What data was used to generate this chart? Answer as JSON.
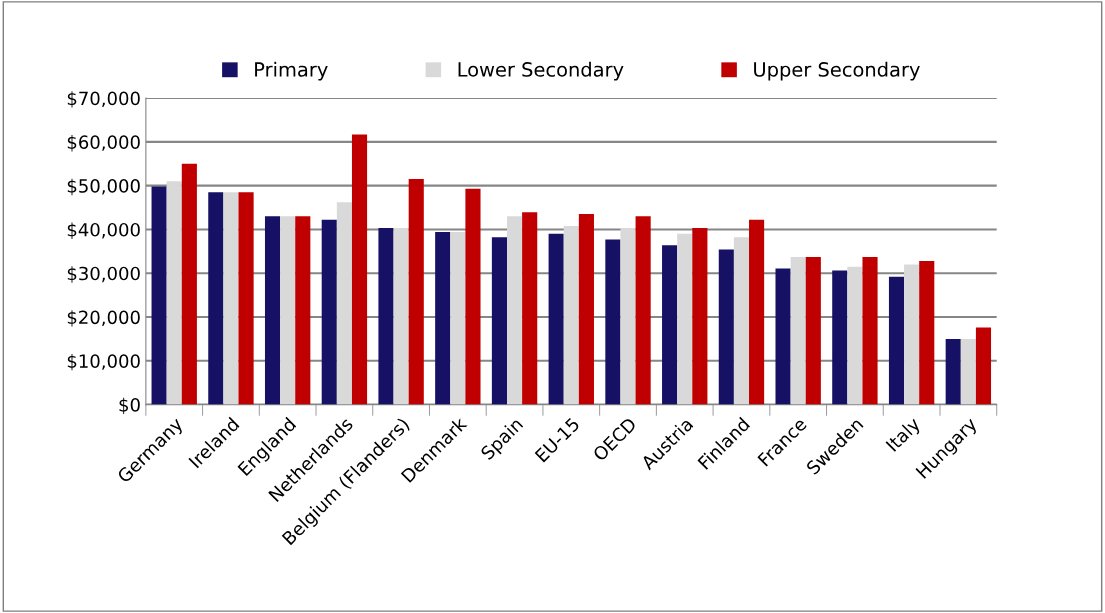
{
  "chart_data": {
    "type": "bar",
    "categories": [
      "Germany",
      "Ireland",
      "England",
      "Netherlands",
      "Belgium (Flanders)",
      "Denmark",
      "Spain",
      "EU-15",
      "OECD",
      "Austria",
      "Finland",
      "France",
      "Sweden",
      "Italy",
      "Hungary"
    ],
    "series": [
      {
        "name": "Primary",
        "color": "#161164",
        "values": [
          49800,
          48500,
          43000,
          42200,
          40300,
          39400,
          38200,
          39000,
          37700,
          36400,
          35400,
          31100,
          30600,
          29200,
          15000
        ]
      },
      {
        "name": "Lower Secondary",
        "color": "#d9d9d9",
        "values": [
          51000,
          48500,
          43000,
          46200,
          40300,
          39400,
          43000,
          40800,
          40300,
          39000,
          38200,
          33700,
          31500,
          32000,
          15000
        ]
      },
      {
        "name": "Upper Secondary",
        "color": "#c00000",
        "values": [
          55000,
          48500,
          43000,
          61700,
          51500,
          49300,
          43900,
          43500,
          43000,
          40300,
          42200,
          33700,
          33700,
          32800,
          17600
        ]
      }
    ],
    "ylim": [
      0,
      70000
    ],
    "yticks": [
      {
        "value": 0,
        "label": "$0"
      },
      {
        "value": 10000,
        "label": "$10,000"
      },
      {
        "value": 20000,
        "label": "$20,000"
      },
      {
        "value": 30000,
        "label": "$30,000"
      },
      {
        "value": 40000,
        "label": "$40,000"
      },
      {
        "value": 50000,
        "label": "$50,000"
      },
      {
        "value": 60000,
        "label": "$60,000"
      },
      {
        "value": 70000,
        "label": "$70,000"
      }
    ],
    "grid": "y",
    "legend": "top"
  }
}
